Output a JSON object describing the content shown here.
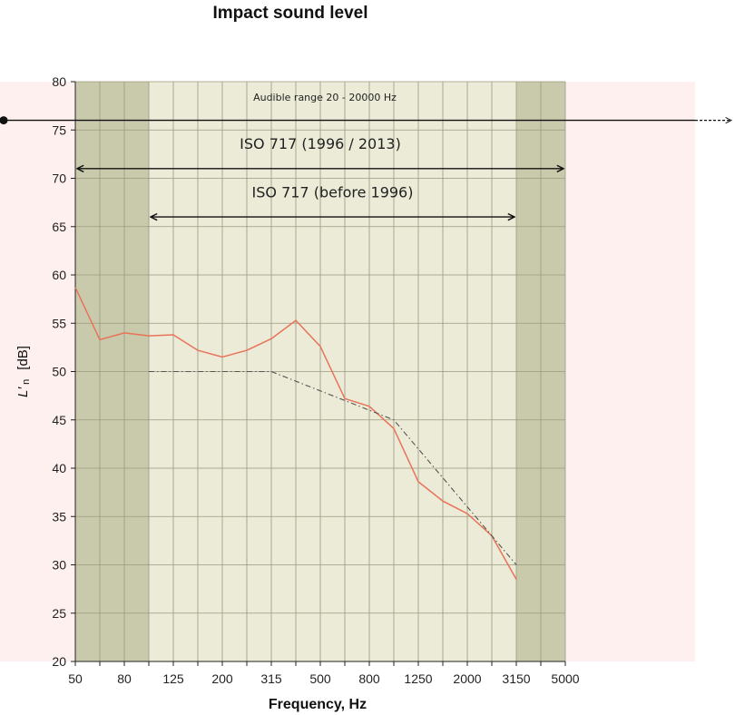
{
  "chart_data": {
    "type": "line",
    "title": "Impact sound level",
    "xlabel": "Frequency, Hz",
    "ylabel": "L′n [dB]",
    "ylabel_main": "L′",
    "ylabel_sub": "n",
    "ylabel_unit": "[dB]",
    "x_scale": "log (1/3-octave bands)",
    "x_categories": [
      "50",
      "63",
      "80",
      "100",
      "125",
      "160",
      "200",
      "250",
      "315",
      "400",
      "500",
      "630",
      "800",
      "1000",
      "1250",
      "1600",
      "2000",
      "2500",
      "3150",
      "4000",
      "5000"
    ],
    "x_tick_labels": [
      "50",
      "80",
      "125",
      "200",
      "315",
      "500",
      "800",
      "1250",
      "2000",
      "3150",
      "5000"
    ],
    "ylim": [
      20,
      80
    ],
    "y_ticks": [
      20,
      25,
      30,
      35,
      40,
      45,
      50,
      55,
      60,
      65,
      70,
      75,
      80
    ],
    "grid": true,
    "series": [
      {
        "style": "solid",
        "color": "#e8735a",
        "x": [
          "50",
          "63",
          "80",
          "100",
          "125",
          "160",
          "200",
          "250",
          "315",
          "400",
          "500",
          "630",
          "800",
          "1000",
          "1250",
          "1600",
          "2000",
          "2500",
          "3150"
        ],
        "values": [
          58.7,
          53.3,
          54.0,
          53.7,
          53.8,
          52.2,
          51.5,
          52.2,
          53.4,
          55.3,
          52.6,
          47.2,
          46.4,
          44.1,
          38.6,
          36.6,
          35.3,
          33.0,
          28.5
        ]
      },
      {
        "style": "dash-dot",
        "color": "#555555",
        "x": [
          "100",
          "125",
          "160",
          "200",
          "250",
          "315",
          "400",
          "500",
          "630",
          "800",
          "1000",
          "1250",
          "1600",
          "2000",
          "2500",
          "3150"
        ],
        "values": [
          50,
          50,
          50,
          50,
          50,
          50,
          49,
          48,
          47,
          46,
          45,
          42,
          39,
          36,
          33,
          30
        ]
      }
    ],
    "bands": [
      {
        "from": "50",
        "to": "100",
        "color": "#c9c9ab"
      },
      {
        "from": "100",
        "to": "3150",
        "color": "#ebebd7"
      },
      {
        "from": "3150",
        "to": "5000",
        "color": "#c9c9ab"
      }
    ],
    "outer_band_color": "#fdf0ee",
    "annotations": [
      {
        "text": "Audible range 20 - 20000 Hz",
        "y": 76
      },
      {
        "text": "ISO 717 (1996 / 2013)",
        "y": 71,
        "from": "50",
        "to": "5000"
      },
      {
        "text": "ISO 717 (before 1996)",
        "y": 66,
        "from": "100",
        "to": "3150"
      }
    ]
  }
}
